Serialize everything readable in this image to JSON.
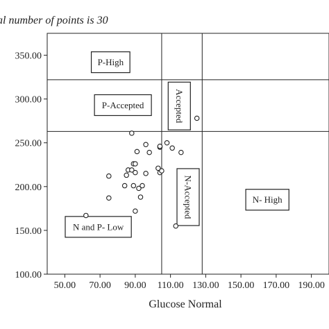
{
  "chart_data": {
    "type": "scatter",
    "title": "al number of points is 30",
    "xlabel": "Glucose Normal",
    "ylabel": "",
    "xlim": [
      40,
      200
    ],
    "ylim": [
      100,
      375
    ],
    "x_ticks": [
      50,
      70,
      90,
      110,
      130,
      150,
      170,
      190
    ],
    "x_tick_labels": [
      "50.00",
      "70.00",
      "90.00",
      "110.00",
      "130.00",
      "150.00",
      "170.00",
      "190.00"
    ],
    "y_ticks": [
      100,
      150,
      200,
      250,
      300,
      350
    ],
    "y_tick_labels": [
      "100.00",
      "150.00",
      "200.00",
      "250.00",
      "300.00",
      "350.00"
    ],
    "grid": false,
    "reference_lines": {
      "x": [
        105,
        128
      ],
      "y": [
        263,
        322
      ]
    },
    "points": [
      {
        "x": 62,
        "y": 167
      },
      {
        "x": 75,
        "y": 212
      },
      {
        "x": 75,
        "y": 187
      },
      {
        "x": 84,
        "y": 201
      },
      {
        "x": 85,
        "y": 213
      },
      {
        "x": 86,
        "y": 219
      },
      {
        "x": 88,
        "y": 261
      },
      {
        "x": 88,
        "y": 219
      },
      {
        "x": 89,
        "y": 226
      },
      {
        "x": 89,
        "y": 201
      },
      {
        "x": 90,
        "y": 226
      },
      {
        "x": 90,
        "y": 216
      },
      {
        "x": 90,
        "y": 172
      },
      {
        "x": 91,
        "y": 240
      },
      {
        "x": 92,
        "y": 198
      },
      {
        "x": 93,
        "y": 188
      },
      {
        "x": 94,
        "y": 201
      },
      {
        "x": 96,
        "y": 248
      },
      {
        "x": 96,
        "y": 215
      },
      {
        "x": 98,
        "y": 239
      },
      {
        "x": 103,
        "y": 221
      },
      {
        "x": 104,
        "y": 216
      },
      {
        "x": 104,
        "y": 245
      },
      {
        "x": 104,
        "y": 246
      },
      {
        "x": 108,
        "y": 250
      },
      {
        "x": 111,
        "y": 244
      },
      {
        "x": 113,
        "y": 155
      },
      {
        "x": 116,
        "y": 239
      },
      {
        "x": 125,
        "y": 278
      },
      {
        "x": 105,
        "y": 218
      }
    ],
    "zone_labels": [
      {
        "text": "P-High",
        "x": 76,
        "y": 342,
        "vertical": false
      },
      {
        "text": "P-Accepted",
        "x": 83,
        "y": 293,
        "vertical": false
      },
      {
        "text": "Accepted",
        "x": 115,
        "y": 292,
        "vertical": true
      },
      {
        "text": "N-Accepted",
        "x": 120,
        "y": 188,
        "vertical": true
      },
      {
        "text": "N- High",
        "x": 165,
        "y": 185,
        "vertical": false
      },
      {
        "text": "N and P- Low",
        "x": 69,
        "y": 154,
        "vertical": false
      }
    ]
  }
}
